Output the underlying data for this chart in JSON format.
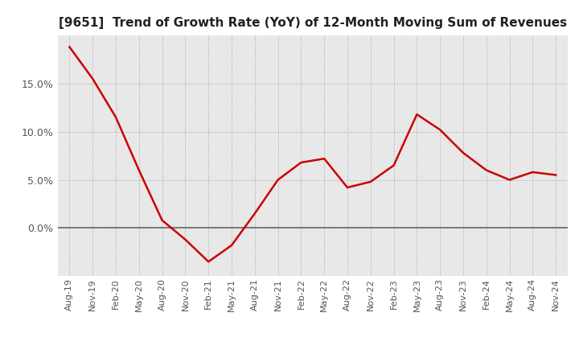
{
  "title": "[9651]  Trend of Growth Rate (YoY) of 12-Month Moving Sum of Revenues",
  "title_fontsize": 11,
  "line_color": "#cc0000",
  "background_color": "#ffffff",
  "plot_bg_color": "#e8e8e8",
  "grid_color": "#999999",
  "tick_label_color": "#555555",
  "x_labels": [
    "Aug-19",
    "Nov-19",
    "Feb-20",
    "May-20",
    "Aug-20",
    "Nov-20",
    "Feb-21",
    "May-21",
    "Aug-21",
    "Nov-21",
    "Feb-22",
    "May-22",
    "Aug-22",
    "Nov-22",
    "Feb-23",
    "May-23",
    "Aug-23",
    "Nov-23",
    "Feb-24",
    "May-24",
    "Aug-24",
    "Nov-24"
  ],
  "y_values": [
    18.8,
    15.5,
    11.5,
    6.0,
    0.8,
    -1.2,
    -3.5,
    -1.8,
    1.5,
    5.0,
    6.8,
    7.2,
    4.2,
    4.8,
    6.5,
    11.8,
    10.2,
    7.8,
    6.0,
    5.0,
    5.8,
    5.5
  ],
  "ylim_min": -5,
  "ylim_max": 20,
  "yticks": [
    0.0,
    5.0,
    10.0,
    15.0
  ],
  "zero_line_color": "#666666"
}
